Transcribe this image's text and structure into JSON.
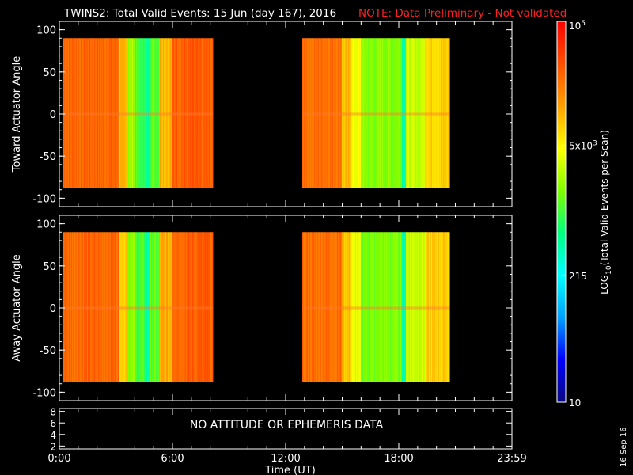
{
  "title": "TWINS2: Total Valid Events: 15 Jun (day 167), 2016",
  "note": "NOTE: Data Preliminary - Not validated",
  "date_stamp": "16 Sep 16",
  "colors": {
    "background": "#000000",
    "axis": "#ffffff",
    "note": "#ff2020",
    "colorbar": [
      "#0a0a80",
      "#0000ff",
      "#00a0ff",
      "#00ffff",
      "#00ff80",
      "#80ff00",
      "#ffff00",
      "#ffa000",
      "#ff5000",
      "#ff0000"
    ]
  },
  "chart_data": [
    {
      "type": "heatmap",
      "ylabel": "Toward Actuator Angle",
      "ylim": [
        -110,
        110
      ],
      "yticks": [
        100,
        50,
        0,
        -50,
        -100
      ],
      "xlim": [
        0,
        24
      ],
      "data_y_range": [
        -88,
        90
      ],
      "data_blocks": [
        [
          0.25,
          8.15
        ],
        [
          12.9,
          20.7
        ]
      ],
      "columns": [
        {
          "x": [
            0.25,
            3.2
          ],
          "level": 0.86
        },
        {
          "x": [
            3.2,
            3.6
          ],
          "level": 0.74
        },
        {
          "x": [
            3.6,
            4.0
          ],
          "level": 0.58
        },
        {
          "x": [
            4.0,
            4.6
          ],
          "level": 0.5
        },
        {
          "x": [
            4.6,
            4.8
          ],
          "level": 0.4
        },
        {
          "x": [
            4.8,
            5.3
          ],
          "level": 0.52
        },
        {
          "x": [
            5.3,
            6.0
          ],
          "level": 0.76
        },
        {
          "x": [
            6.0,
            8.15
          ],
          "level": 0.87
        },
        {
          "x": [
            12.9,
            15.0
          ],
          "level": 0.85
        },
        {
          "x": [
            15.0,
            15.5
          ],
          "level": 0.74
        },
        {
          "x": [
            15.5,
            16.0
          ],
          "level": 0.66
        },
        {
          "x": [
            16.0,
            18.2
          ],
          "level": 0.56
        },
        {
          "x": [
            18.2,
            18.4
          ],
          "level": 0.42
        },
        {
          "x": [
            18.4,
            19.5
          ],
          "level": 0.62
        },
        {
          "x": [
            19.5,
            20.7
          ],
          "level": 0.72
        }
      ]
    },
    {
      "type": "heatmap",
      "ylabel": "Away Actuator Angle",
      "ylim": [
        -110,
        110
      ],
      "yticks": [
        100,
        50,
        0,
        -50,
        -100
      ],
      "xlim": [
        0,
        24
      ],
      "data_y_range": [
        -88,
        90
      ],
      "data_blocks": [
        [
          0.25,
          8.15
        ],
        [
          12.9,
          20.7
        ]
      ],
      "columns": [
        {
          "x": [
            0.25,
            3.2
          ],
          "level": 0.86
        },
        {
          "x": [
            3.2,
            3.6
          ],
          "level": 0.74
        },
        {
          "x": [
            3.6,
            4.0
          ],
          "level": 0.56
        },
        {
          "x": [
            4.0,
            4.6
          ],
          "level": 0.5
        },
        {
          "x": [
            4.6,
            4.8
          ],
          "level": 0.4
        },
        {
          "x": [
            4.8,
            5.3
          ],
          "level": 0.52
        },
        {
          "x": [
            5.3,
            6.0
          ],
          "level": 0.76
        },
        {
          "x": [
            6.0,
            8.15
          ],
          "level": 0.87
        },
        {
          "x": [
            12.9,
            15.0
          ],
          "level": 0.85
        },
        {
          "x": [
            15.0,
            15.5
          ],
          "level": 0.74
        },
        {
          "x": [
            15.5,
            16.0
          ],
          "level": 0.64
        },
        {
          "x": [
            16.0,
            18.2
          ],
          "level": 0.55
        },
        {
          "x": [
            18.2,
            18.4
          ],
          "level": 0.42
        },
        {
          "x": [
            18.4,
            19.5
          ],
          "level": 0.62
        },
        {
          "x": [
            19.5,
            20.7
          ],
          "level": 0.72
        }
      ]
    },
    {
      "type": "line",
      "message": "NO ATTITUDE OR EPHEMERIS DATA",
      "ylim": [
        1.5,
        8.5
      ],
      "yticks": [
        8,
        6,
        4,
        2
      ],
      "xlim": [
        0,
        24
      ],
      "xticks": [
        0,
        6,
        12,
        18,
        24
      ],
      "xtick_labels": [
        "0:00",
        "6:00",
        "12:00",
        "18:00",
        "23:59"
      ],
      "xlabel": "Time (UT)"
    }
  ],
  "colorbar": {
    "ylabel": "LOG10(Total Valid Events per Scan)",
    "ylabel_main": "LOG",
    "ylabel_sub": "10",
    "ylabel_rest": "(Total Valid Events per Scan)",
    "scale": "log",
    "range": [
      10,
      100000
    ],
    "ticks": [
      {
        "value": 100000,
        "label_base": "10",
        "label_exp": "5"
      },
      {
        "value": 5000,
        "label_base": "5x10",
        "label_exp": "3"
      },
      {
        "value": 215,
        "label_base": "215",
        "label_exp": ""
      },
      {
        "value": 10,
        "label_base": "10",
        "label_exp": ""
      }
    ]
  }
}
